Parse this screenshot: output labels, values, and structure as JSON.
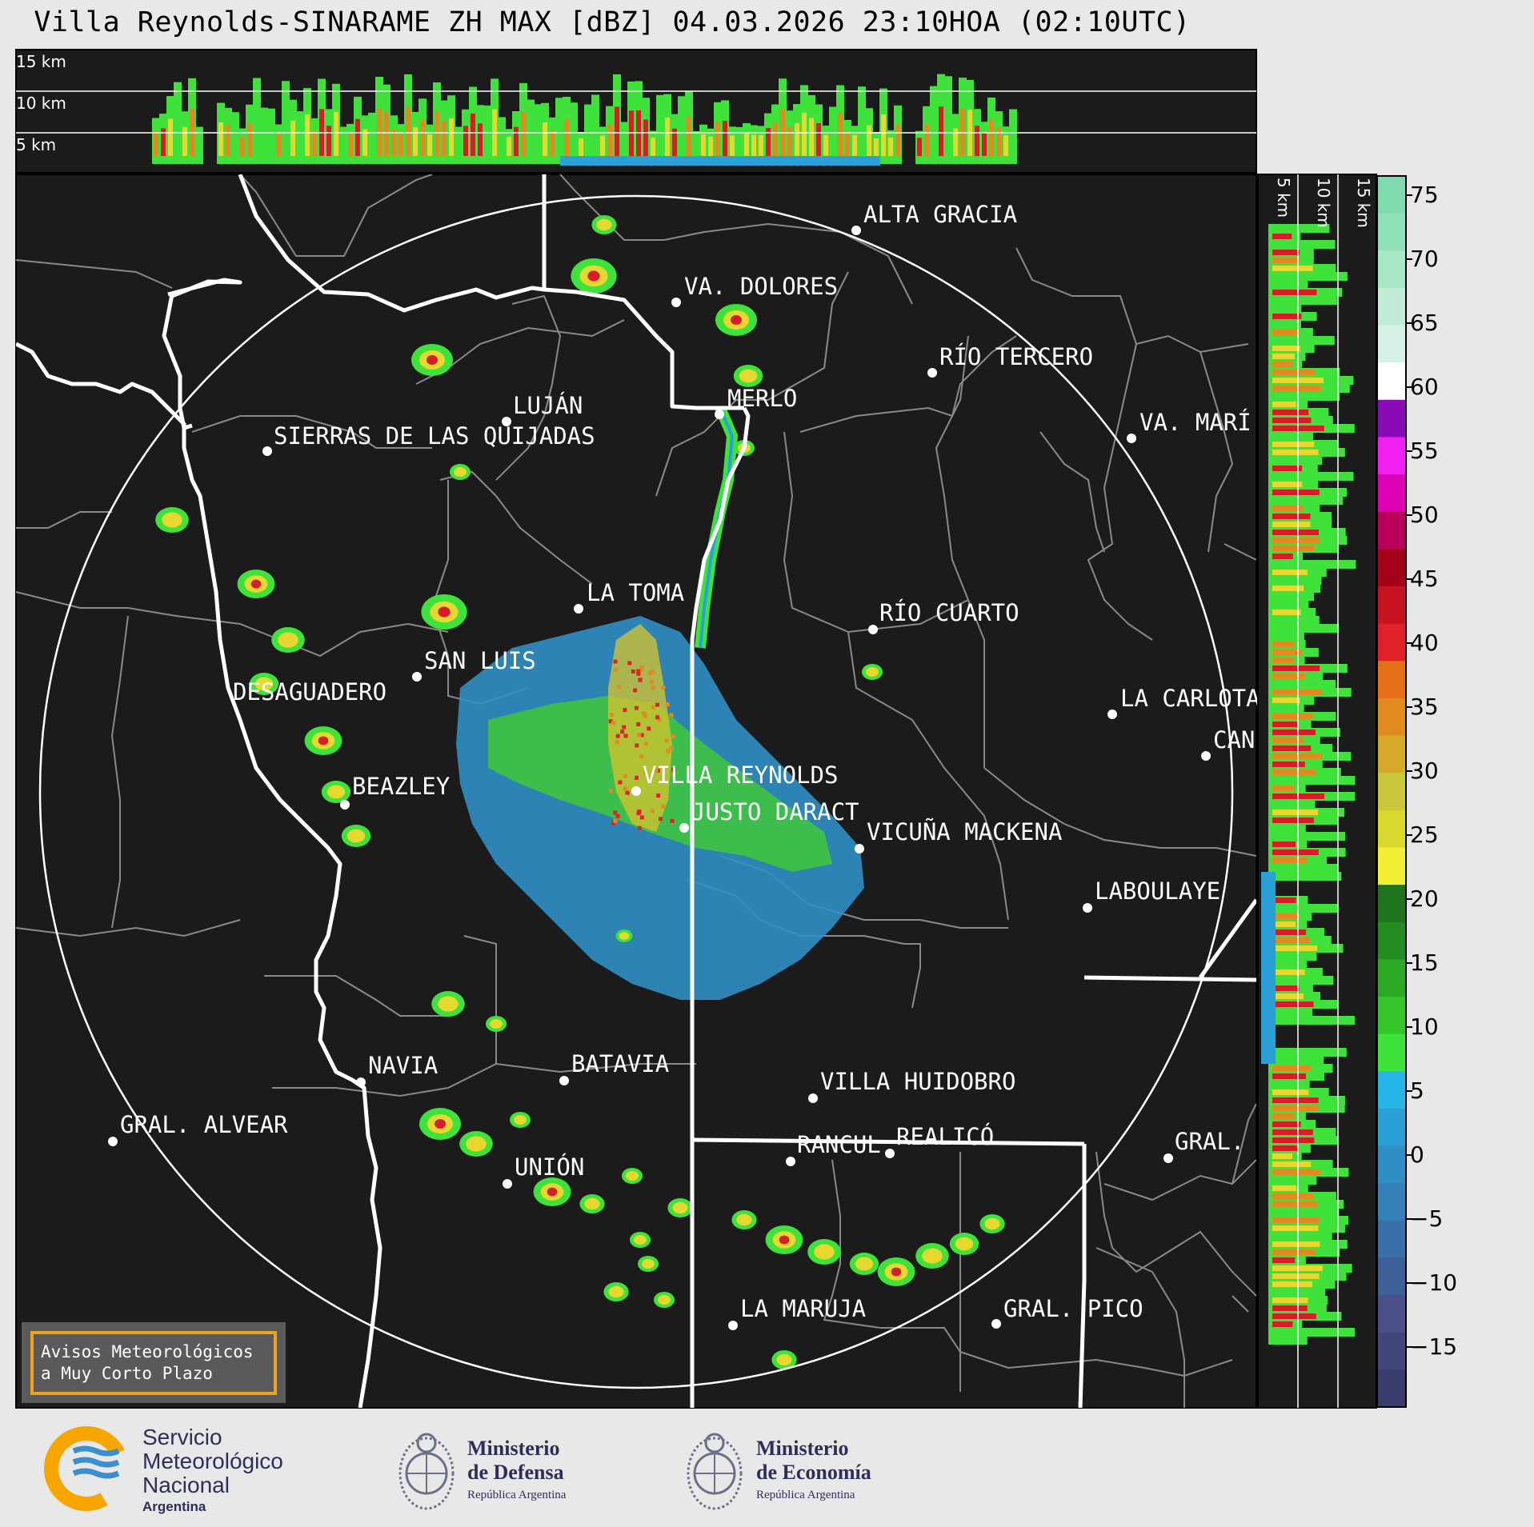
{
  "title": "Villa Reynolds-SINARAME ZH MAX [dBZ] 04.03.2026 23:10HOA (02:10UTC)",
  "top_section": {
    "height_labels": [
      "15 km",
      "10 km",
      "5 km"
    ]
  },
  "side_section": {
    "height_labels": [
      "5 km",
      "10 km",
      "15 km"
    ]
  },
  "colorbar": {
    "ticks": [
      "75",
      "70",
      "65",
      "60",
      "55",
      "50",
      "45",
      "40",
      "35",
      "30",
      "25",
      "20",
      "15",
      "10",
      "5",
      "0",
      "−5",
      "−10",
      "−15"
    ],
    "colors": [
      "#3a3d6b",
      "#43467a",
      "#4b5088",
      "#3e5f97",
      "#3a6fa8",
      "#3580b8",
      "#2f8fc5",
      "#2aa0d6",
      "#27b4e6",
      "#3fe23a",
      "#34c52a",
      "#2ca825",
      "#248c20",
      "#1f731c",
      "#f2ee33",
      "#d8d82d",
      "#c8c83a",
      "#d6aa28",
      "#e08a20",
      "#e6701a",
      "#e0212a",
      "#c81222",
      "#a4001a",
      "#b8005a",
      "#e000b4",
      "#f020f0",
      "#8a0ab8",
      "#ffffff",
      "#d6f2e6",
      "#c2ecd8",
      "#a8e6c8",
      "#90e0b8",
      "#80dcb0"
    ]
  },
  "cities": [
    {
      "name": "ALTA GRACIA"
    },
    {
      "name": "VA. DOLORES"
    },
    {
      "name": "RÍO TERCERO"
    },
    {
      "name": "LUJÁN"
    },
    {
      "name": "MERLO"
    },
    {
      "name": "SIERRAS DE LAS QUIJADAS"
    },
    {
      "name": "VA. MARÍ"
    },
    {
      "name": "LA TOMA"
    },
    {
      "name": "RÍO CUARTO"
    },
    {
      "name": "SAN LUIS"
    },
    {
      "name": "DESAGUADERO"
    },
    {
      "name": "LA CARLOTA"
    },
    {
      "name": "CAN"
    },
    {
      "name": "VILLA REYNOLDS"
    },
    {
      "name": "BEAZLEY"
    },
    {
      "name": "JUSTO DARACT"
    },
    {
      "name": "VICUÑA MACKENA"
    },
    {
      "name": "LABOULAYE"
    },
    {
      "name": "NAVIA"
    },
    {
      "name": "BATAVIA"
    },
    {
      "name": "VILLA HUIDOBRO"
    },
    {
      "name": "GRAL. ALVEAR"
    },
    {
      "name": "RANCUL"
    },
    {
      "name": "REALICÓ"
    },
    {
      "name": "GRAL."
    },
    {
      "name": "UNIÓN"
    },
    {
      "name": "LA MARUJA"
    },
    {
      "name": "GRAL. PICO"
    }
  ],
  "warning_box": {
    "line1": "Avisos Meteorológicos",
    "line2": "a Muy Corto Plazo",
    "border_color": "#f0a020"
  },
  "logos": {
    "smn": {
      "line1": "Servicio",
      "line2": "Meteorológico",
      "line3": "Nacional",
      "line4": "Argentina"
    },
    "defensa": {
      "line1": "Ministerio",
      "line2": "de Defensa",
      "line3": "República Argentina"
    },
    "economia": {
      "line1": "Ministerio",
      "line2": "de Economía",
      "line3": "República Argentina"
    }
  },
  "colors": {
    "map_background": "#1b1b1b",
    "boundary": "#8a8a8a",
    "province_border": "#ffffff",
    "range_ring": "#ffffff"
  }
}
